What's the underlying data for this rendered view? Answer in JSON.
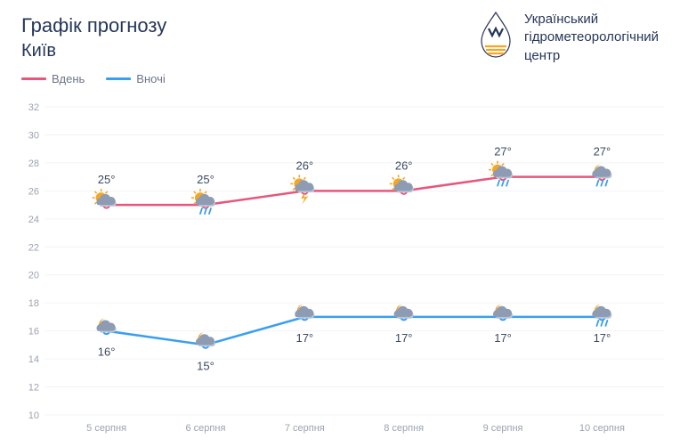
{
  "header": {
    "title": "Графік прогнозу",
    "subtitle": "Київ",
    "org_line1": "Український",
    "org_line2": "гідрометеорологічний",
    "org_line3": "центр"
  },
  "legend": {
    "day": "Вдень",
    "night": "Вночі"
  },
  "chart": {
    "type": "line",
    "ylim": [
      10,
      32
    ],
    "ytick_step": 2,
    "grid_color": "#f2f3f6",
    "background": "#ffffff",
    "x_labels": [
      "5 серпня",
      "6 серпня",
      "7 серпня",
      "8 серпня",
      "9 серпня",
      "10 серпня"
    ],
    "series": {
      "day": {
        "color": "#e6577b",
        "values": [
          25,
          25,
          26,
          26,
          27,
          27
        ],
        "labels": [
          "25°",
          "25°",
          "26°",
          "26°",
          "27°",
          "27°"
        ],
        "icons": [
          "sun-cloud",
          "sun-cloud-rain",
          "sun-cloud-storm",
          "sun-cloud",
          "sun-cloud-rain",
          "moon-cloud-rain"
        ],
        "label_offset": -24
      },
      "night": {
        "color": "#3a9ff0",
        "values": [
          16,
          15,
          17,
          17,
          17,
          17
        ],
        "labels": [
          "16°",
          "15°",
          "17°",
          "17°",
          "17°",
          "17°"
        ],
        "icons": [
          "moon-cloud",
          "moon-cloud",
          "moon-cloud",
          "moon-cloud",
          "moon-cloud",
          "moon-cloud-rain"
        ],
        "label_offset": 28
      }
    },
    "icon_colors": {
      "sun": "#f5a623",
      "moon": "#f5a623",
      "cloud": "#8d9bb3",
      "cloud_light": "#b8c3d6",
      "rain": "#3a9ff0",
      "lightning": "#f5a623"
    }
  }
}
